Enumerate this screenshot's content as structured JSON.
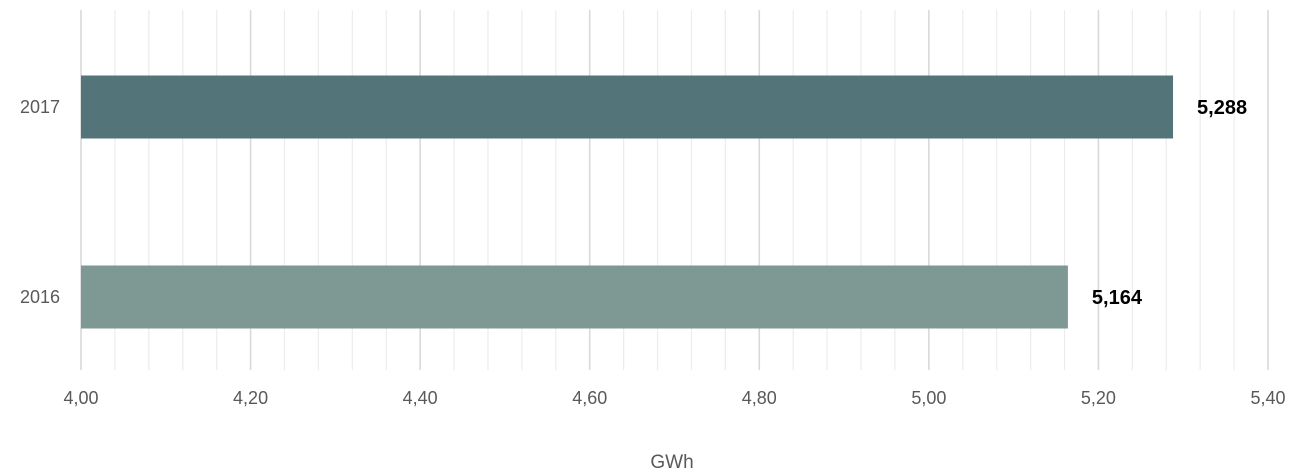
{
  "chart_data": {
    "type": "bar",
    "orientation": "horizontal",
    "categories": [
      "2017",
      "2016"
    ],
    "values": [
      5.288,
      5.164
    ],
    "data_labels": [
      "5,288",
      "5,164"
    ],
    "colors": [
      "#537479",
      "#7e9993"
    ],
    "title": "",
    "xlabel": "GWh",
    "ylabel": "",
    "xlim": [
      4.0,
      5.4
    ],
    "x_ticks": [
      4.0,
      4.2,
      4.4,
      4.6,
      4.8,
      5.0,
      5.2,
      5.4
    ],
    "x_tick_labels": [
      "4,00",
      "4,20",
      "4,40",
      "4,60",
      "4,80",
      "5,00",
      "5,20",
      "5,40"
    ],
    "minor_tick_step": 0.04,
    "grid": true,
    "legend": "none",
    "gridline_color_major": "#d9d9d9",
    "gridline_color_minor": "#ececec",
    "text_color": "#595959"
  }
}
